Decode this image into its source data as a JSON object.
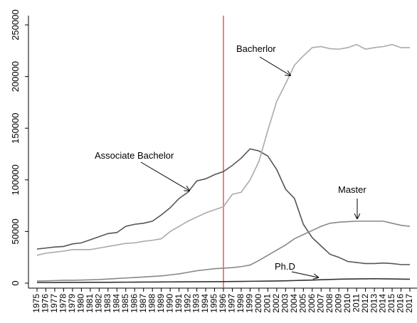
{
  "chart_data": {
    "type": "line",
    "x": [
      1975,
      1976,
      1977,
      1978,
      1979,
      1980,
      1981,
      1982,
      1983,
      1984,
      1985,
      1986,
      1987,
      1988,
      1989,
      1990,
      1991,
      1992,
      1993,
      1994,
      1995,
      1996,
      1997,
      1998,
      1999,
      2000,
      2001,
      2002,
      2003,
      2004,
      2005,
      2006,
      2007,
      2008,
      2009,
      2010,
      2011,
      2012,
      2013,
      2014,
      2015,
      2016,
      2017
    ],
    "xlim": [
      1975,
      2017
    ],
    "xticks": [
      1975,
      1976,
      1977,
      1978,
      1979,
      1980,
      1981,
      1982,
      1983,
      1984,
      1985,
      1986,
      1987,
      1988,
      1989,
      1990,
      1991,
      1992,
      1993,
      1994,
      1995,
      1996,
      1997,
      1998,
      1999,
      2000,
      2001,
      2002,
      2003,
      2004,
      2005,
      2006,
      2007,
      2008,
      2009,
      2010,
      2011,
      2012,
      2013,
      2014,
      2015,
      2016,
      2017
    ],
    "ylim": [
      0,
      250000
    ],
    "yticks": [
      0,
      50000,
      100000,
      150000,
      200000,
      250000
    ],
    "vline": {
      "x": 1996,
      "color": "#e03030"
    },
    "series": [
      {
        "name": "Associate Bachelor",
        "color": "#555555",
        "values": [
          33000,
          34000,
          35000,
          35500,
          38000,
          39000,
          42000,
          45000,
          48000,
          49000,
          55000,
          57000,
          58000,
          60000,
          66000,
          73000,
          82000,
          88000,
          99000,
          101000,
          105000,
          108000,
          114000,
          121000,
          130000,
          128000,
          123000,
          110000,
          91000,
          82000,
          57000,
          44000,
          36000,
          28000,
          25000,
          21000,
          20000,
          19000,
          19000,
          19500,
          19000,
          18000,
          18000
        ]
      },
      {
        "name": "Bacherlor",
        "color": "#aaaaaa",
        "values": [
          27000,
          29000,
          30000,
          31000,
          32500,
          32500,
          32500,
          34000,
          35500,
          37000,
          38500,
          39000,
          40500,
          41500,
          43000,
          50000,
          55000,
          60000,
          64000,
          68000,
          71000,
          74000,
          86000,
          88000,
          100000,
          118000,
          148000,
          176000,
          193000,
          211000,
          220000,
          228000,
          229000,
          227000,
          226500,
          228000,
          231000,
          226500,
          228000,
          229000,
          231000,
          228000,
          228000
        ]
      },
      {
        "name": "Master",
        "color": "#888888",
        "values": [
          2000,
          2200,
          2500,
          2800,
          2800,
          3000,
          3200,
          3500,
          4000,
          4500,
          5000,
          5500,
          6000,
          6500,
          7000,
          8000,
          9000,
          10500,
          12000,
          13000,
          14000,
          14500,
          15000,
          16000,
          17500,
          22000,
          27000,
          32000,
          37000,
          43000,
          47000,
          51000,
          55000,
          58000,
          59000,
          59500,
          60000,
          60000,
          60000,
          60000,
          58000,
          56000,
          55000
        ]
      },
      {
        "name": "Ph.D",
        "color": "#333333",
        "values": [
          600,
          600,
          650,
          700,
          700,
          750,
          800,
          800,
          850,
          900,
          950,
          1000,
          1050,
          1100,
          1150,
          1200,
          1250,
          1300,
          1350,
          1400,
          1450,
          1500,
          1600,
          1700,
          1800,
          1900,
          2000,
          2100,
          2300,
          2500,
          2800,
          3000,
          3300,
          3600,
          3800,
          4000,
          4100,
          4200,
          4300,
          4200,
          4100,
          3900,
          3800
        ]
      }
    ]
  }
}
